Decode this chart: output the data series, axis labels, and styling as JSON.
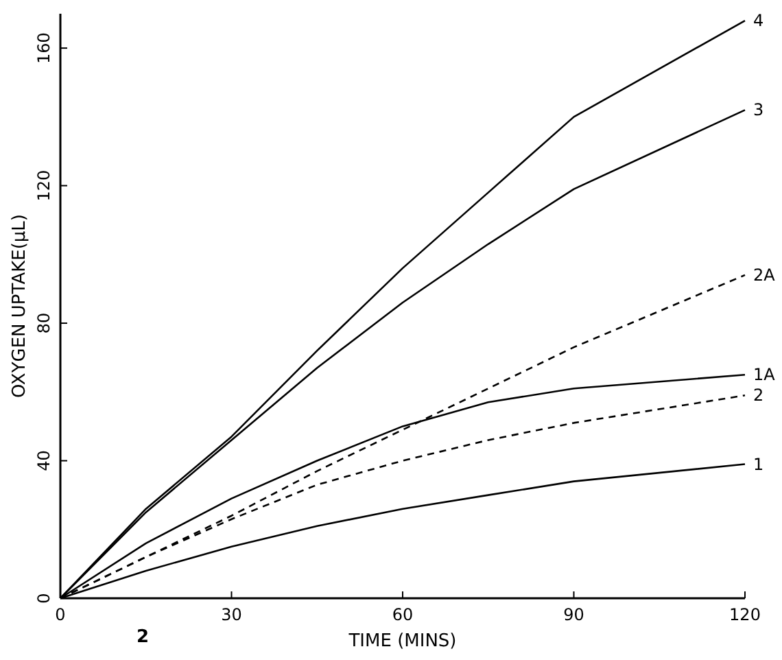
{
  "chart_data": {
    "type": "line",
    "xlabel": "TIME (MINS)",
    "ylabel": "OXYGEN UPTAKE(µL)",
    "x": [
      0,
      15,
      30,
      45,
      60,
      75,
      90,
      120
    ],
    "xlim": [
      0,
      120
    ],
    "xticks": [
      0,
      30,
      60,
      90,
      120
    ],
    "ylim": [
      0,
      170
    ],
    "yticks": [
      0,
      40,
      80,
      120,
      160
    ],
    "grid": false,
    "marker": "none",
    "series": [
      {
        "name": "4",
        "color": "#000000",
        "line_style": "solid",
        "values": [
          0,
          26,
          47,
          72,
          96,
          118,
          140,
          168
        ]
      },
      {
        "name": "3",
        "color": "#000000",
        "line_style": "solid",
        "values": [
          0,
          25,
          46,
          67,
          86,
          103,
          119,
          142
        ]
      },
      {
        "name": "2A",
        "color": "#000000",
        "line_style": "dashed",
        "values": [
          0,
          12,
          24,
          37,
          49,
          61,
          73,
          94
        ]
      },
      {
        "name": "1A",
        "color": "#000000",
        "line_style": "solid",
        "values": [
          0,
          16,
          29,
          40,
          50,
          57,
          61,
          65
        ]
      },
      {
        "name": "2",
        "color": "#000000",
        "line_style": "dashed",
        "values": [
          0,
          12,
          23,
          33,
          40,
          46,
          51,
          59
        ]
      },
      {
        "name": "1",
        "color": "#000000",
        "line_style": "solid",
        "values": [
          0,
          8,
          15,
          21,
          26,
          30,
          34,
          39
        ]
      }
    ],
    "annotations": [
      "2"
    ]
  }
}
